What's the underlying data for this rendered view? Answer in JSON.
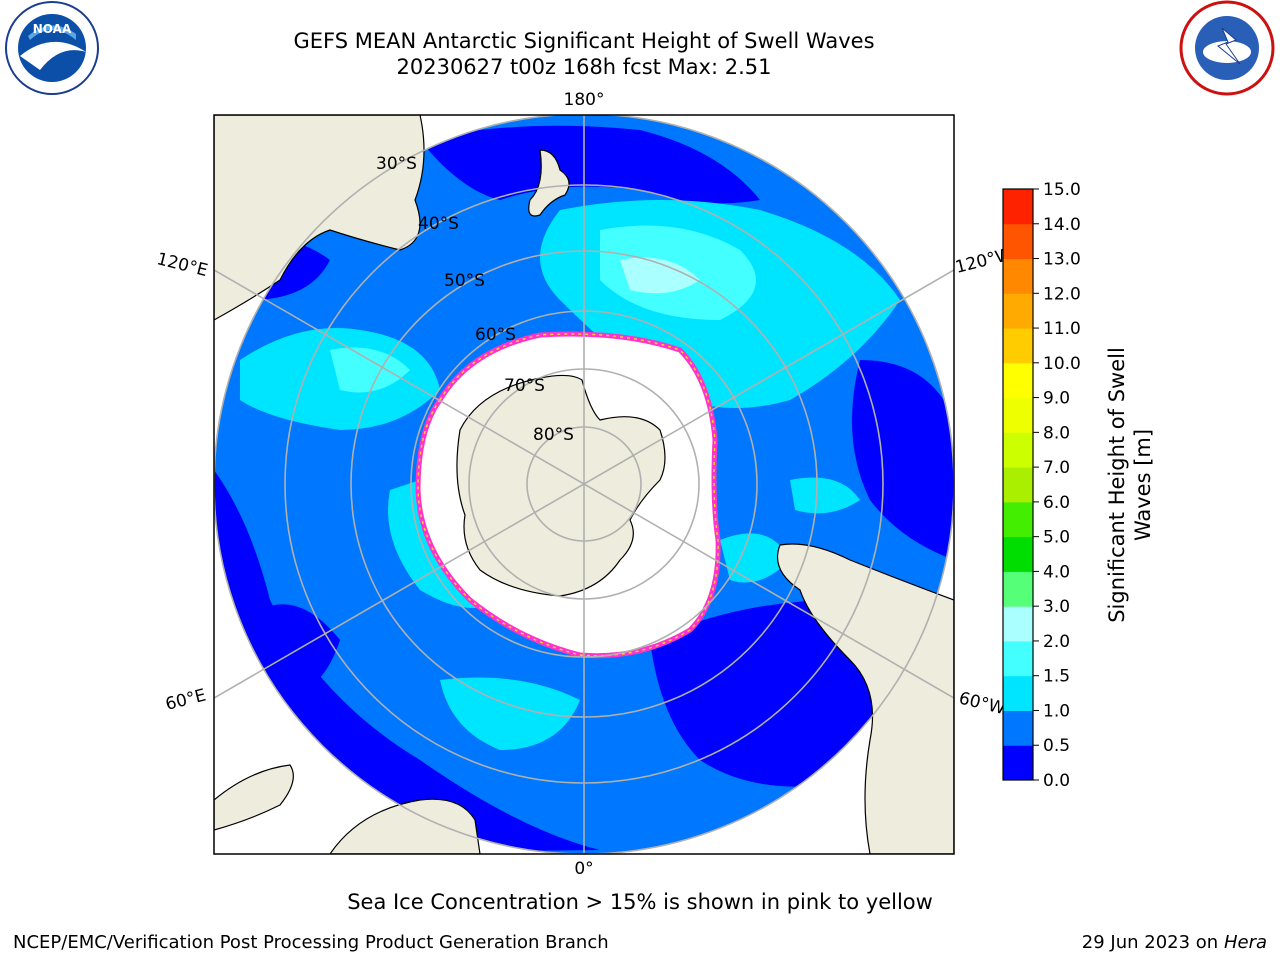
{
  "header": {
    "title_line1": "GEFS MEAN Antarctic Significant Height of Swell Waves",
    "title_line2": "20230627 t00z 168h fcst   Max: 2.51"
  },
  "map": {
    "projection": "south-polar-stereographic",
    "latitude_labels": [
      "30°S",
      "40°S",
      "50°S",
      "60°S",
      "70°S",
      "80°S"
    ],
    "longitude_labels": {
      "top": "180°",
      "bottom": "0°",
      "upper_left": "120°E",
      "lower_left": "60°E",
      "upper_right": "120°W",
      "lower_right": "60°W"
    },
    "colors": {
      "land": "#eeecdc",
      "ice": "#ffffff",
      "ice_edge": "#ff33cc",
      "ice_edge_inner": "#ffcc33",
      "grid": "#b0b0b0"
    }
  },
  "colorbar": {
    "title_line1": "Significant Height of Swell",
    "title_line2": "Waves [m]",
    "ticks": [
      "0.0",
      "0.5",
      "1.0",
      "1.5",
      "2.0",
      "3.0",
      "4.0",
      "5.0",
      "6.0",
      "7.0",
      "8.0",
      "9.0",
      "10.0",
      "11.0",
      "12.0",
      "13.0",
      "14.0",
      "15.0"
    ],
    "colors": [
      "#0000ff",
      "#0077ff",
      "#00e5ff",
      "#44ffff",
      "#aaffff",
      "#55ff77",
      "#00dd00",
      "#44ee00",
      "#aaee00",
      "#ccff00",
      "#eeff00",
      "#ffff00",
      "#ffcc00",
      "#ffaa00",
      "#ff8800",
      "#ff5500",
      "#ff2200"
    ]
  },
  "footer": {
    "note": "Sea Ice Concentration > 15% is shown in pink to yellow",
    "credit": "NCEP/EMC/Verification Post Processing Product Generation Branch",
    "date": "29 Jun 2023 on",
    "machine": "Hera"
  },
  "logos": {
    "left": "NOAA",
    "right": "NATIONAL WEATHER SERVICE"
  }
}
